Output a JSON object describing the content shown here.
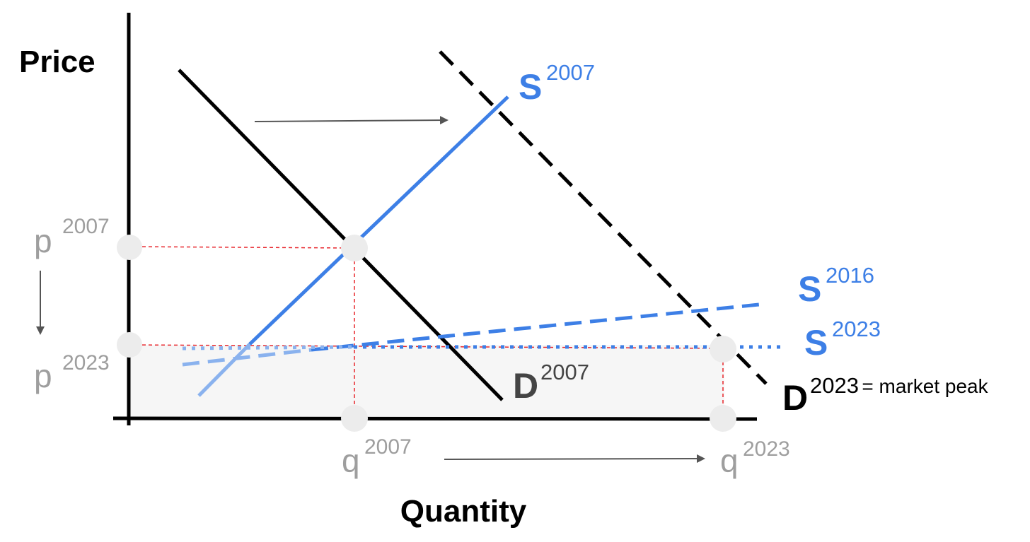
{
  "colors": {
    "supply": "#3d7fe6",
    "supply_light": "#8ab2ee",
    "demand": "#000000",
    "demand_2007": "#444444",
    "guide": "#e8262c",
    "marker": "#ececec",
    "tick_text": "#9e9e9e",
    "arrow": "#555555",
    "shade": "#f6f6f6"
  },
  "axes": {
    "y_title": "Price",
    "x_title": "Quantity"
  },
  "ticks": {
    "p2007": {
      "base": "p",
      "sup": "2007"
    },
    "p2023": {
      "base": "p",
      "sup": "2023"
    },
    "q2007": {
      "base": "q",
      "sup": "2007"
    },
    "q2023": {
      "base": "q",
      "sup": "2023"
    }
  },
  "curves": {
    "s2007": {
      "base": "S",
      "sup": "2007",
      "style": "solid",
      "color": "#3d7fe6"
    },
    "s2016": {
      "base": "S",
      "sup": "2016",
      "style": "dashed",
      "color": "#3d7fe6"
    },
    "s2023": {
      "base": "S",
      "sup": "2023",
      "style": "dotted",
      "color": "#3d7fe6"
    },
    "d2007": {
      "base": "D",
      "sup": "2007",
      "style": "solid",
      "color": "#444444"
    },
    "d2023": {
      "base": "D",
      "sup": "2023",
      "note": " = market peak",
      "style": "dashed",
      "color": "#000000"
    }
  },
  "arrows": [
    {
      "id": "demand-shift",
      "direction": "right"
    },
    {
      "id": "quantity-increase",
      "direction": "right"
    },
    {
      "id": "price-decrease",
      "direction": "down"
    }
  ]
}
